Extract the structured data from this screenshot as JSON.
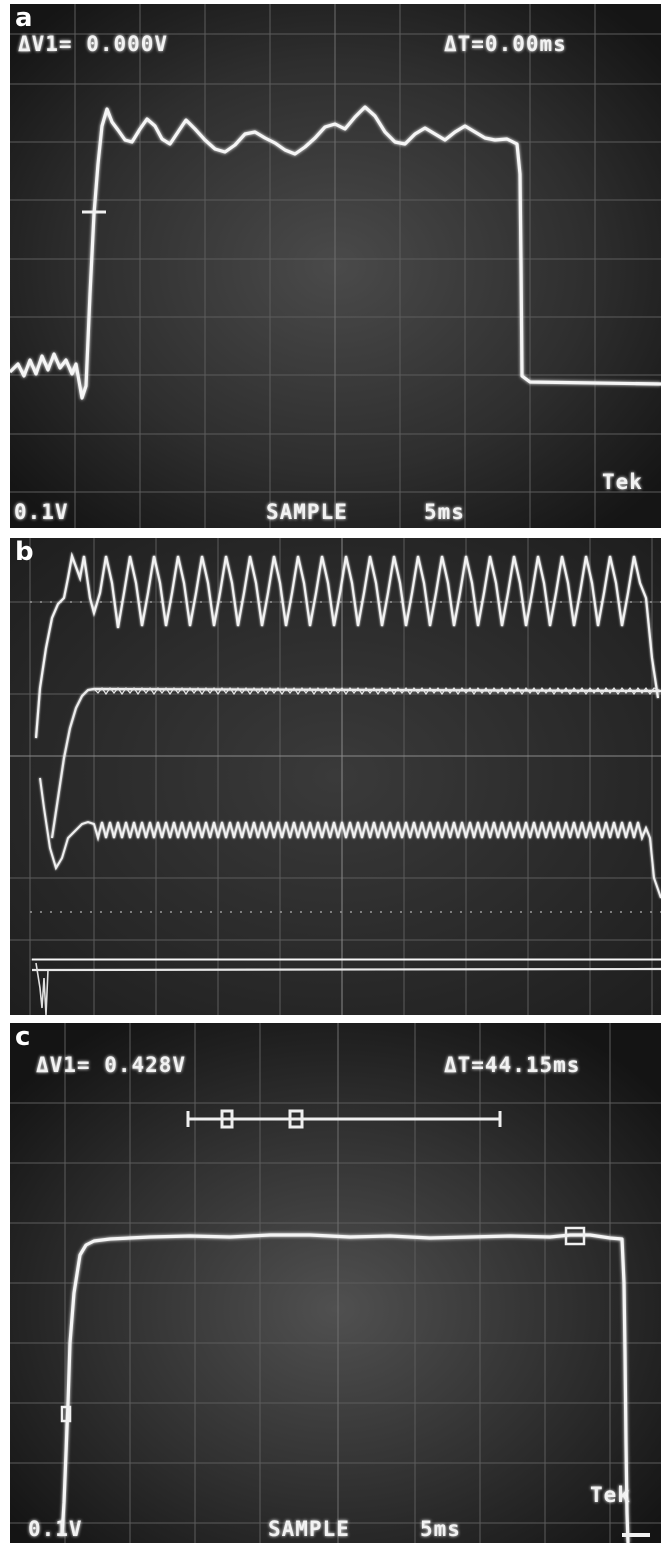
{
  "panels": [
    {
      "id": "a",
      "letter": "a",
      "readouts": {
        "delta_v": "ΔV1= 0.000V",
        "delta_t": "ΔT=0.00ms",
        "volts_div": "0.1V",
        "mode": "SAMPLE",
        "time_div": "5ms",
        "brand": "Tek"
      }
    },
    {
      "id": "b",
      "letter": "b",
      "readouts": {}
    },
    {
      "id": "c",
      "letter": "c",
      "readouts": {
        "delta_v": "ΔV1= 0.428V",
        "delta_t": "ΔT=44.15ms",
        "volts_div": "0.1V",
        "mode": "SAMPLE",
        "time_div": "5ms",
        "brand": "Tek"
      }
    }
  ],
  "colors": {
    "screen_background": "#262626",
    "trace": "#f4f4f4",
    "graticule": "#5a5a5a"
  }
}
